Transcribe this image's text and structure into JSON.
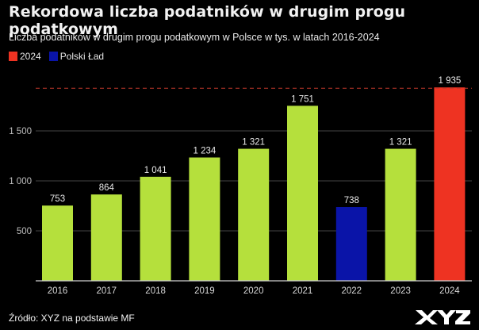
{
  "header": {
    "title": "Rekordowa liczba podatników w drugim progu podatkowym",
    "subtitle": "Liczba podatników w drugim progu podatkowym w Polsce w tys. w latach 2016-2024"
  },
  "legend": [
    {
      "label": "2024",
      "color": "#ee3322"
    },
    {
      "label": "Polski Ład",
      "color": "#0a14a8"
    }
  ],
  "footer": {
    "source": "Źródło: XYZ na podstawie MF",
    "logo": "XYZ"
  },
  "colors": {
    "default_bar": "#b5e03c",
    "highlight_2024": "#ee3322",
    "polski_lad": "#0a14a8",
    "reference_line": "#c0392b",
    "gridline": "#444444",
    "background": "#000000"
  },
  "chart_data": {
    "type": "bar",
    "title": "Rekordowa liczba podatników w drugim progu podatkowym",
    "subtitle": "Liczba podatników w drugim progu podatkowym w Polsce w tys. w latach 2016-2024",
    "xlabel": "",
    "ylabel": "",
    "categories": [
      "2016",
      "2017",
      "2018",
      "2019",
      "2020",
      "2021",
      "2022",
      "2023",
      "2024"
    ],
    "values": [
      753,
      864,
      1041,
      1234,
      1321,
      1751,
      738,
      1321,
      1935
    ],
    "value_labels": [
      "753",
      "864",
      "1 041",
      "1 234",
      "1 321",
      "1 751",
      "738",
      "1 321",
      "1 935"
    ],
    "bar_groups": [
      "default",
      "default",
      "default",
      "default",
      "default",
      "default",
      "polski_lad",
      "default",
      "2024"
    ],
    "yticks": [
      500,
      1000,
      1500
    ],
    "ytick_labels": [
      "500",
      "1 000",
      "1 500"
    ],
    "ylim": [
      0,
      1935
    ],
    "grid": true,
    "reference_line": {
      "value": 1935,
      "style": "dashed"
    },
    "legend_position": "top-left"
  }
}
